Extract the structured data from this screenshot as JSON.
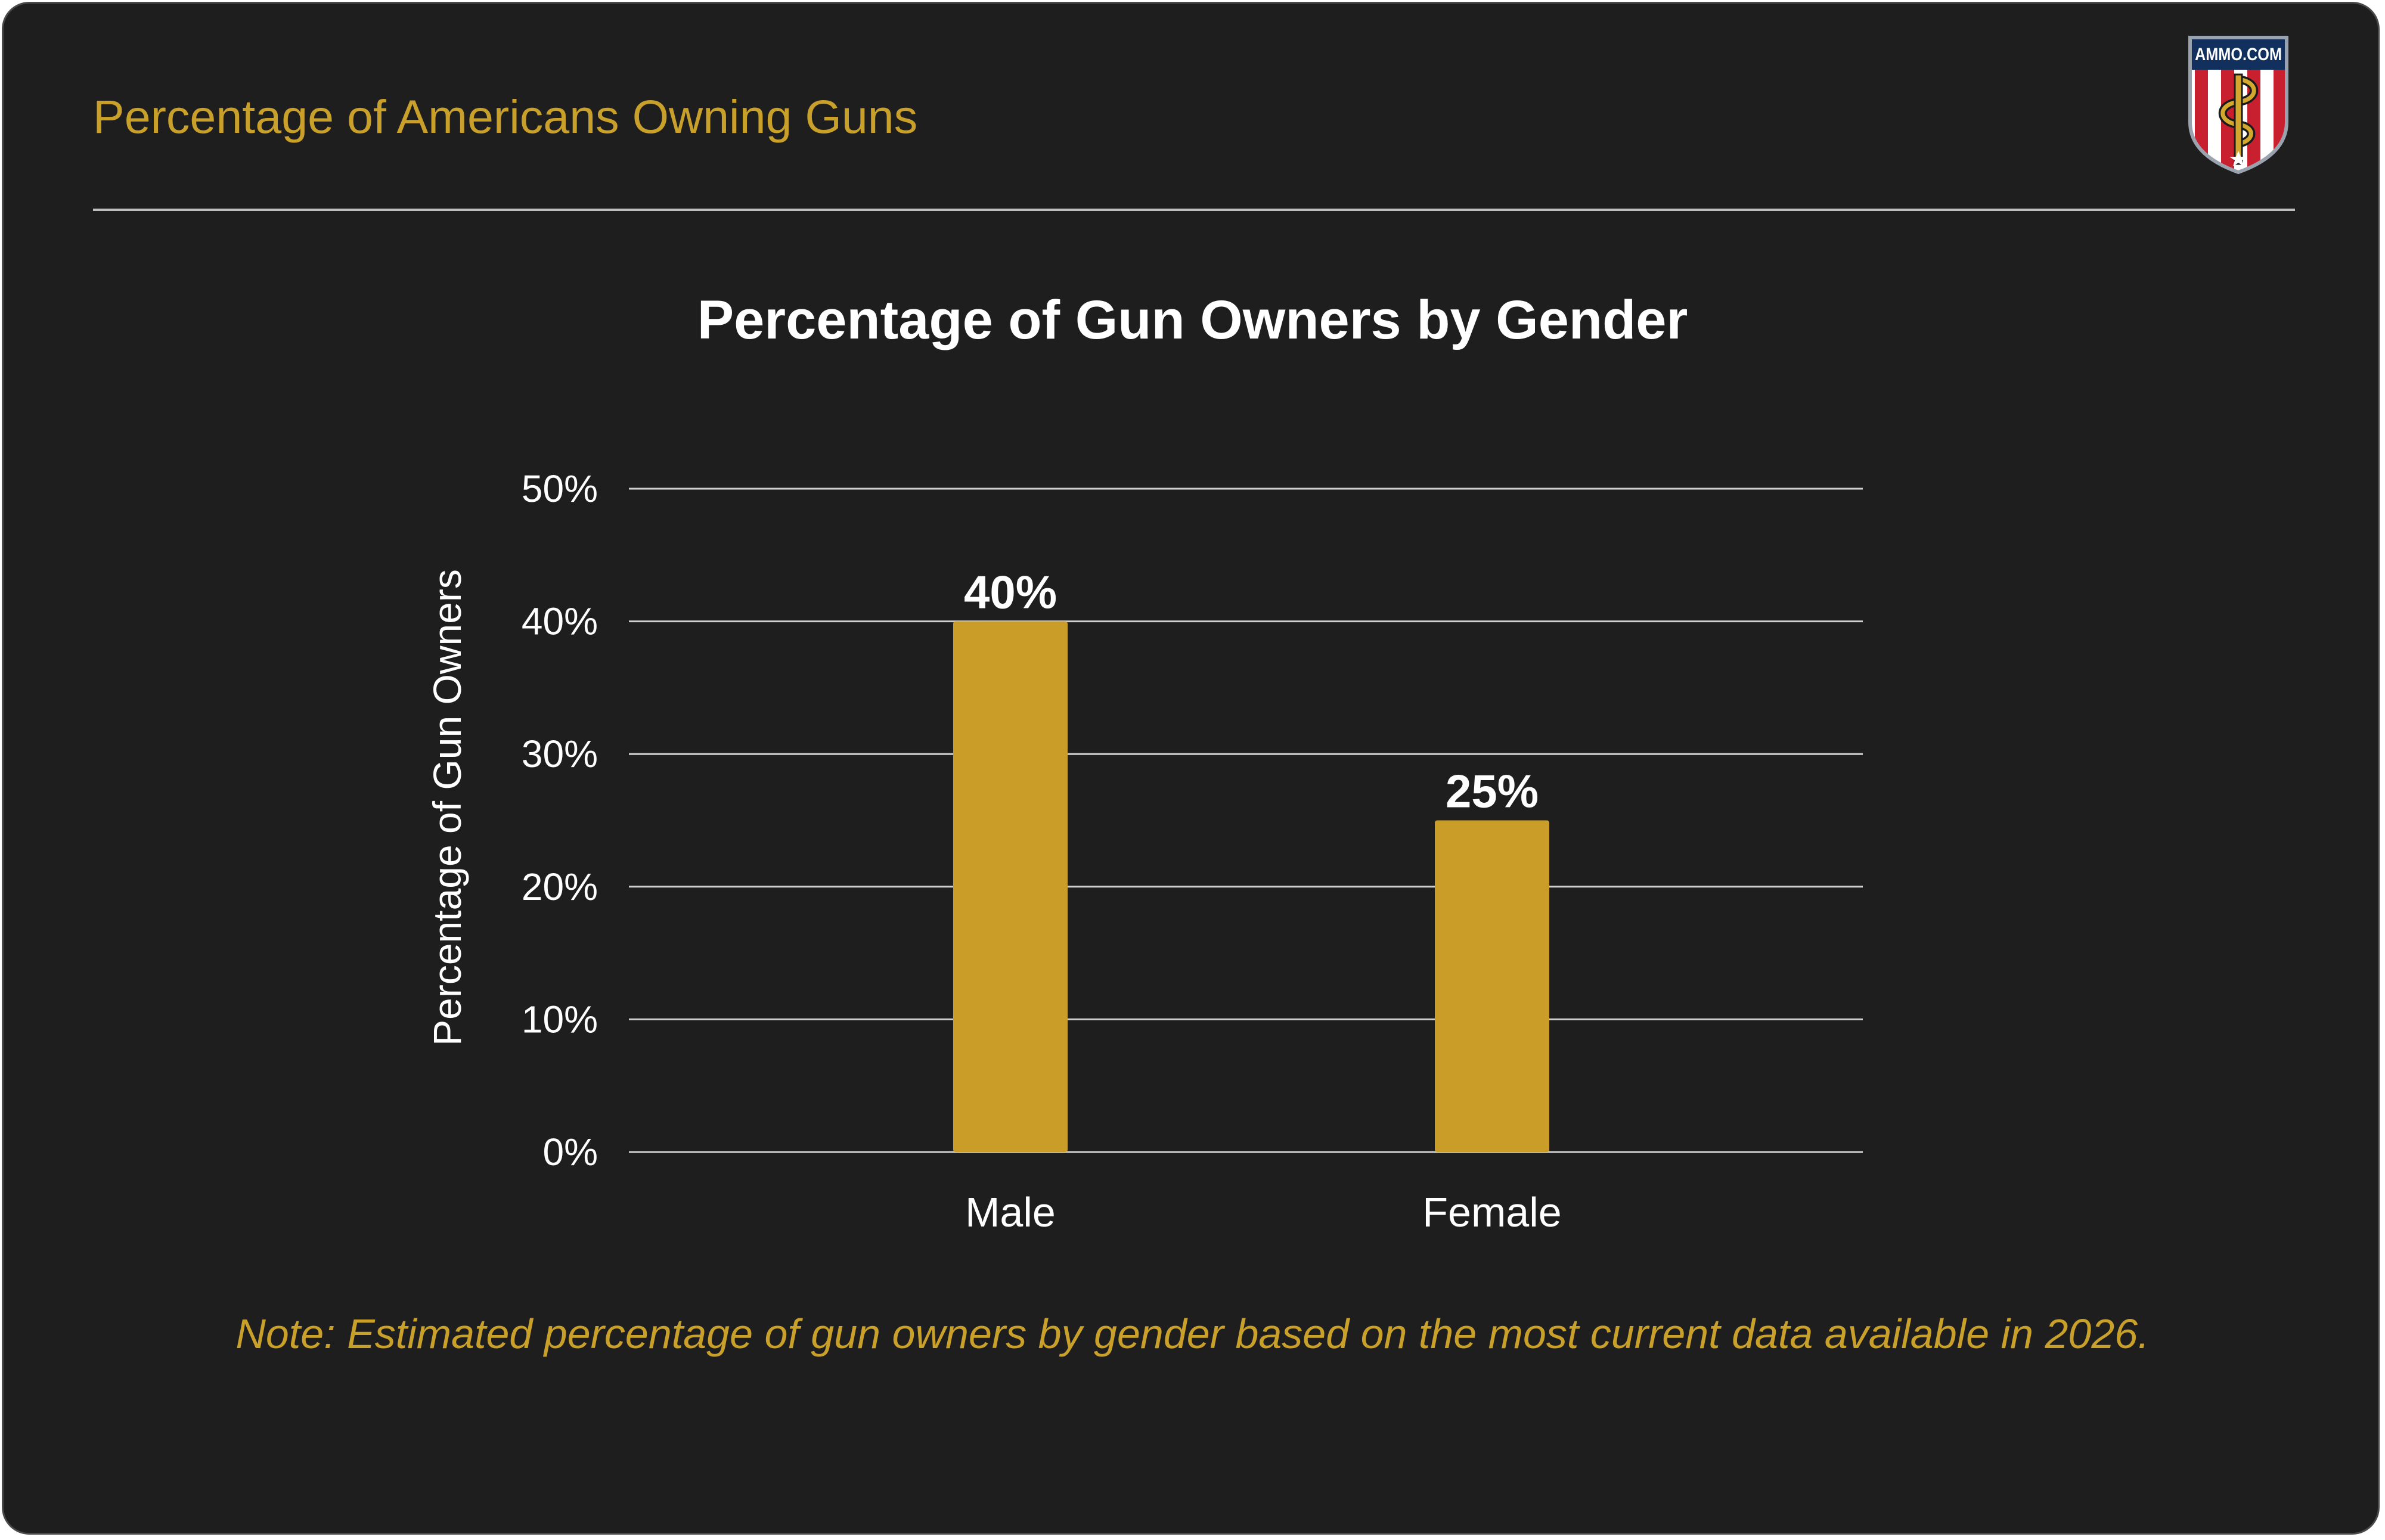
{
  "page_title": "Percentage of Americans Owning Guns",
  "logo": {
    "text": "AMMO.COM",
    "icon": "snake-shield-icon"
  },
  "note": "Note: Estimated percentage of gun owners by gender based on the most current data available in 2026.",
  "colors": {
    "background": "#1e1e1e",
    "accent": "#c9a02a",
    "bar": "#c99d27",
    "text": "#ffffff",
    "grid": "#d0d0d0"
  },
  "chart_data": {
    "type": "bar",
    "title": "Percentage of Gun Owners by Gender",
    "xlabel": "",
    "ylabel": "Percentage of Gun Owners",
    "categories": [
      "Male",
      "Female"
    ],
    "values": [
      40,
      25
    ],
    "data_labels": [
      "40%",
      "25%"
    ],
    "ylim": [
      0,
      50
    ],
    "yticks": [
      0,
      10,
      20,
      30,
      40,
      50
    ],
    "ytick_labels": [
      "0%",
      "10%",
      "20%",
      "30%",
      "40%",
      "50%"
    ],
    "grid": true,
    "legend": "none"
  }
}
